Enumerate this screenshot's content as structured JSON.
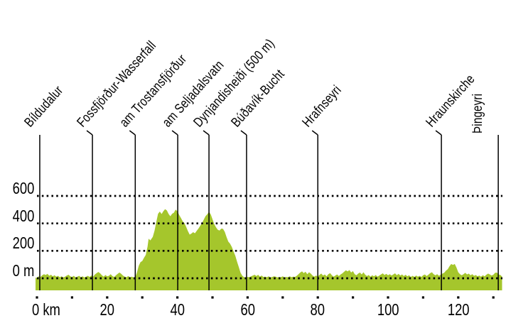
{
  "colors": {
    "area_green": "#a5c62c",
    "line_black": "#000000",
    "background": "#ffffff"
  },
  "y_axis": {
    "unit": "m",
    "ticks": [
      {
        "label": "600",
        "m": 600
      },
      {
        "label": "400",
        "m": 400
      },
      {
        "label": "200",
        "m": 200
      },
      {
        "label": "0 m",
        "m": 0
      }
    ]
  },
  "x_axis": {
    "unit": "km",
    "labels": [
      {
        "label": "0 km",
        "km": 0
      },
      {
        "label": "20",
        "km": 20
      },
      {
        "label": "40",
        "km": 40
      },
      {
        "label": "60",
        "km": 60
      },
      {
        "label": "80",
        "km": 80
      },
      {
        "label": "100",
        "km": 100
      },
      {
        "label": "120",
        "km": 120
      }
    ],
    "minor_tick_step_km": 10,
    "max_km": 132.5
  },
  "chart_data": {
    "type": "area",
    "title": "",
    "xlabel": "km",
    "ylabel": "m",
    "xlim": [
      0,
      132.5
    ],
    "ylim": [
      0,
      700
    ],
    "grid": "dotted-horizontal",
    "markers": [
      {
        "id": "bildudalur",
        "label": "Bíldudalur",
        "km": 0.8,
        "vertical": false
      },
      {
        "id": "fossfjordur-wasserfall",
        "label": "Fossfjörður-Wasserfall",
        "km": 15.8,
        "vertical": false
      },
      {
        "id": "am-trostansfjordur",
        "label": "am Trostansfjörður",
        "km": 28,
        "vertical": false
      },
      {
        "id": "am-seljadalsvatn",
        "label": "am Seljadalsvatn",
        "km": 40.1,
        "vertical": false
      },
      {
        "id": "dynjandisheidi",
        "label": "Dynjandisheiði (500 m)",
        "km": 49,
        "vertical": false
      },
      {
        "id": "budavik-bucht",
        "label": "Búðavík-Bucht",
        "km": 59.7,
        "vertical": false
      },
      {
        "id": "hrafnseyri",
        "label": "Hrafnseyri",
        "km": 80,
        "vertical": false
      },
      {
        "id": "hraunskirche",
        "label": "Hraunskirche",
        "km": 115.2,
        "vertical": false
      },
      {
        "id": "thingeyri",
        "label": "Þingeyri",
        "km": 131.4,
        "vertical": true
      }
    ],
    "profile_km_m": [
      [
        0,
        4
      ],
      [
        0.5,
        14
      ],
      [
        1,
        10
      ],
      [
        1.5,
        22
      ],
      [
        2,
        30
      ],
      [
        2.5,
        24
      ],
      [
        3,
        32
      ],
      [
        3.5,
        18
      ],
      [
        4,
        26
      ],
      [
        4.5,
        14
      ],
      [
        5,
        22
      ],
      [
        5.5,
        12
      ],
      [
        6,
        18
      ],
      [
        6.5,
        8
      ],
      [
        7,
        14
      ],
      [
        7.5,
        6
      ],
      [
        8,
        12
      ],
      [
        8.5,
        20
      ],
      [
        9,
        26
      ],
      [
        9.5,
        14
      ],
      [
        10,
        10
      ],
      [
        10.5,
        18
      ],
      [
        11,
        6
      ],
      [
        11.5,
        12
      ],
      [
        12,
        18
      ],
      [
        12.5,
        8
      ],
      [
        13,
        14
      ],
      [
        13.5,
        6
      ],
      [
        14,
        12
      ],
      [
        14.5,
        18
      ],
      [
        15,
        10
      ],
      [
        15.5,
        20
      ],
      [
        16,
        12
      ],
      [
        16.5,
        28
      ],
      [
        17,
        38
      ],
      [
        17.5,
        46
      ],
      [
        18,
        36
      ],
      [
        18.5,
        22
      ],
      [
        19,
        12
      ],
      [
        19.5,
        24
      ],
      [
        20,
        14
      ],
      [
        20.5,
        18
      ],
      [
        21,
        30
      ],
      [
        21.5,
        16
      ],
      [
        22,
        10
      ],
      [
        22.5,
        22
      ],
      [
        23,
        32
      ],
      [
        23.5,
        42
      ],
      [
        24,
        32
      ],
      [
        24.5,
        20
      ],
      [
        25,
        12
      ],
      [
        25.5,
        8
      ],
      [
        26,
        16
      ],
      [
        26.5,
        8
      ],
      [
        27,
        12
      ],
      [
        27.5,
        6
      ],
      [
        28,
        6
      ],
      [
        28.5,
        44
      ],
      [
        29,
        92
      ],
      [
        29.5,
        118
      ],
      [
        30,
        126
      ],
      [
        30.5,
        150
      ],
      [
        31,
        170
      ],
      [
        31.5,
        230
      ],
      [
        31.8,
        288
      ],
      [
        32.3,
        276
      ],
      [
        33,
        302
      ],
      [
        33.5,
        348
      ],
      [
        34,
        412
      ],
      [
        34.5,
        470
      ],
      [
        35,
        486
      ],
      [
        35.5,
        468
      ],
      [
        36,
        488
      ],
      [
        36.5,
        504
      ],
      [
        37,
        494
      ],
      [
        37.5,
        468
      ],
      [
        38,
        452
      ],
      [
        38.5,
        470
      ],
      [
        39,
        478
      ],
      [
        39.5,
        500
      ],
      [
        40,
        488
      ],
      [
        40.5,
        462
      ],
      [
        41,
        440
      ],
      [
        41.5,
        416
      ],
      [
        42,
        402
      ],
      [
        42.5,
        374
      ],
      [
        43,
        344
      ],
      [
        43.5,
        318
      ],
      [
        44,
        326
      ],
      [
        44.5,
        336
      ],
      [
        45,
        328
      ],
      [
        45.5,
        346
      ],
      [
        46,
        362
      ],
      [
        46.5,
        382
      ],
      [
        47,
        402
      ],
      [
        47.5,
        426
      ],
      [
        48,
        452
      ],
      [
        48.5,
        466
      ],
      [
        49,
        484
      ],
      [
        49.5,
        466
      ],
      [
        50,
        430
      ],
      [
        50.5,
        394
      ],
      [
        51,
        372
      ],
      [
        51.5,
        354
      ],
      [
        52,
        348
      ],
      [
        52.5,
        362
      ],
      [
        53,
        360
      ],
      [
        53.5,
        338
      ],
      [
        54,
        300
      ],
      [
        54.5,
        268
      ],
      [
        55,
        252
      ],
      [
        55.5,
        228
      ],
      [
        56,
        196
      ],
      [
        56.5,
        164
      ],
      [
        57,
        120
      ],
      [
        57.5,
        80
      ],
      [
        58,
        40
      ],
      [
        58.5,
        18
      ],
      [
        59,
        8
      ],
      [
        59.5,
        6
      ],
      [
        60,
        10
      ],
      [
        60.5,
        8
      ],
      [
        61,
        14
      ],
      [
        61.5,
        20
      ],
      [
        62,
        26
      ],
      [
        62.5,
        16
      ],
      [
        63,
        26
      ],
      [
        63.5,
        12
      ],
      [
        64,
        20
      ],
      [
        64.5,
        10
      ],
      [
        65,
        12
      ],
      [
        65.5,
        8
      ],
      [
        66,
        14
      ],
      [
        66.5,
        6
      ],
      [
        67,
        10
      ],
      [
        67.5,
        14
      ],
      [
        68,
        12
      ],
      [
        68.5,
        6
      ],
      [
        69,
        10
      ],
      [
        69.5,
        8
      ],
      [
        70,
        14
      ],
      [
        70.5,
        6
      ],
      [
        71,
        10
      ],
      [
        71.5,
        8
      ],
      [
        72,
        14
      ],
      [
        72.5,
        8
      ],
      [
        73,
        12
      ],
      [
        73.5,
        10
      ],
      [
        74,
        18
      ],
      [
        74.5,
        30
      ],
      [
        75,
        42
      ],
      [
        75.5,
        50
      ],
      [
        76,
        38
      ],
      [
        76.5,
        48
      ],
      [
        77,
        30
      ],
      [
        77.5,
        44
      ],
      [
        78,
        34
      ],
      [
        78.5,
        20
      ],
      [
        79,
        12
      ],
      [
        79.5,
        20
      ],
      [
        80,
        12
      ],
      [
        80.5,
        26
      ],
      [
        81,
        34
      ],
      [
        81.5,
        20
      ],
      [
        82,
        28
      ],
      [
        82.5,
        14
      ],
      [
        83,
        30
      ],
      [
        83.5,
        38
      ],
      [
        84,
        22
      ],
      [
        84.5,
        12
      ],
      [
        85,
        20
      ],
      [
        85.5,
        28
      ],
      [
        86,
        16
      ],
      [
        86.5,
        28
      ],
      [
        87,
        36
      ],
      [
        87.5,
        48
      ],
      [
        88,
        58
      ],
      [
        88.5,
        50
      ],
      [
        89,
        60
      ],
      [
        89.5,
        42
      ],
      [
        90,
        52
      ],
      [
        90.5,
        30
      ],
      [
        91,
        22
      ],
      [
        91.5,
        34
      ],
      [
        92,
        42
      ],
      [
        92.5,
        28
      ],
      [
        93,
        44
      ],
      [
        93.5,
        26
      ],
      [
        94,
        16
      ],
      [
        94.5,
        24
      ],
      [
        95,
        12
      ],
      [
        95.5,
        22
      ],
      [
        96,
        14
      ],
      [
        96.5,
        24
      ],
      [
        97,
        12
      ],
      [
        97.5,
        20
      ],
      [
        98,
        28
      ],
      [
        98.5,
        36
      ],
      [
        99,
        24
      ],
      [
        99.5,
        32
      ],
      [
        100,
        22
      ],
      [
        100.5,
        30
      ],
      [
        101,
        20
      ],
      [
        101.5,
        28
      ],
      [
        102,
        36
      ],
      [
        102.5,
        22
      ],
      [
        103,
        32
      ],
      [
        103.5,
        20
      ],
      [
        104,
        28
      ],
      [
        104.5,
        16
      ],
      [
        105,
        26
      ],
      [
        105.5,
        14
      ],
      [
        106,
        22
      ],
      [
        106.5,
        10
      ],
      [
        107,
        18
      ],
      [
        107.5,
        10
      ],
      [
        108,
        20
      ],
      [
        108.5,
        12
      ],
      [
        109,
        18
      ],
      [
        109.5,
        10
      ],
      [
        110,
        22
      ],
      [
        110.5,
        28
      ],
      [
        111,
        16
      ],
      [
        111.5,
        26
      ],
      [
        112,
        38
      ],
      [
        112.5,
        44
      ],
      [
        113,
        30
      ],
      [
        113.5,
        22
      ],
      [
        114,
        30
      ],
      [
        114.5,
        18
      ],
      [
        115,
        26
      ],
      [
        115.5,
        34
      ],
      [
        116,
        40
      ],
      [
        116.5,
        56
      ],
      [
        117,
        66
      ],
      [
        117.5,
        88
      ],
      [
        118,
        104
      ],
      [
        118.5,
        98
      ],
      [
        119,
        104
      ],
      [
        119.5,
        78
      ],
      [
        120,
        44
      ],
      [
        120.5,
        30
      ],
      [
        121,
        22
      ],
      [
        121.5,
        30
      ],
      [
        122,
        40
      ],
      [
        122.5,
        28
      ],
      [
        123,
        34
      ],
      [
        123.5,
        22
      ],
      [
        124,
        30
      ],
      [
        124.5,
        18
      ],
      [
        125,
        24
      ],
      [
        125.5,
        14
      ],
      [
        126,
        20
      ],
      [
        126.5,
        12
      ],
      [
        127,
        22
      ],
      [
        127.5,
        14
      ],
      [
        128,
        26
      ],
      [
        128.5,
        34
      ],
      [
        129,
        28
      ],
      [
        129.5,
        20
      ],
      [
        130,
        26
      ],
      [
        130.5,
        40
      ],
      [
        131,
        42
      ],
      [
        131.5,
        28
      ],
      [
        132,
        24
      ],
      [
        132.5,
        12
      ]
    ]
  }
}
